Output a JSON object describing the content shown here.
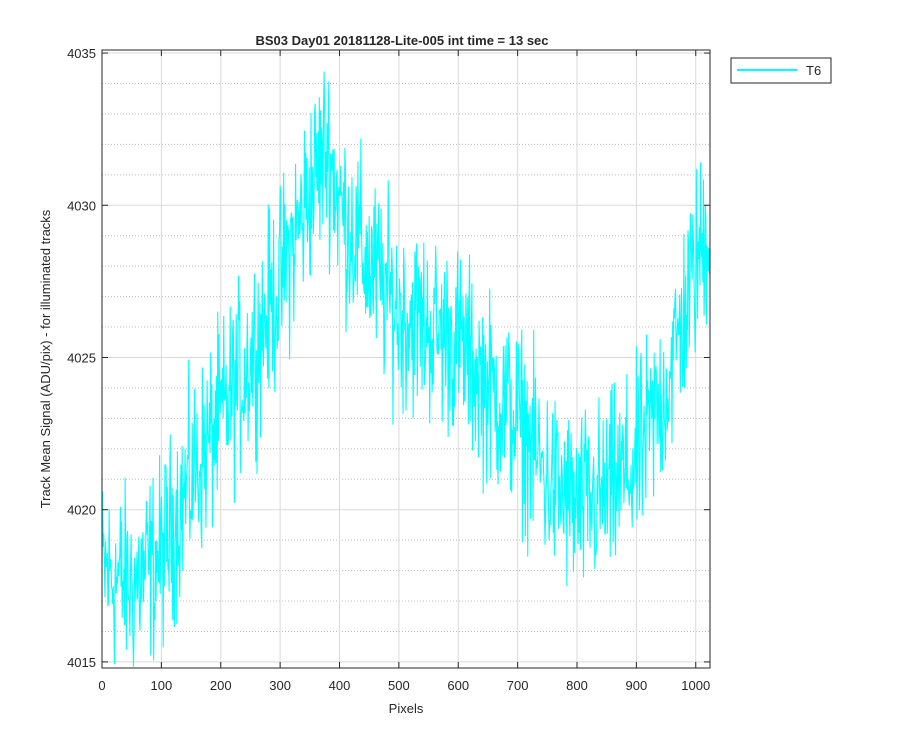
{
  "chart_data": {
    "type": "line",
    "title": "BS03 Day01 20181128-Lite-005 int time = 13 sec",
    "xlabel": "Pixels",
    "ylabel": "Track Mean Signal (ADU/pix) - for illuminated tracks",
    "xlim": [
      0,
      1024
    ],
    "ylim": [
      4014.8,
      4035.1
    ],
    "x_ticks": [
      0,
      100,
      200,
      300,
      400,
      500,
      600,
      700,
      800,
      900,
      1000
    ],
    "x_tick_labels": [
      "0",
      "100",
      "200",
      "300",
      "400",
      "500",
      "600",
      "700",
      "800",
      "900",
      "1000"
    ],
    "y_ticks": [
      4015,
      4020,
      4025,
      4030,
      4035
    ],
    "y_tick_labels": [
      "4015",
      "4020",
      "4025",
      "4030",
      "4035"
    ],
    "grid": true,
    "minor_grid": true,
    "legend": "top-right",
    "series": [
      {
        "name": "T6",
        "color": "#00ffff",
        "noise_amplitude": 2.2,
        "trend_x": [
          0,
          50,
          100,
          150,
          200,
          250,
          300,
          350,
          380,
          400,
          450,
          500,
          550,
          600,
          650,
          700,
          750,
          800,
          850,
          900,
          950,
          1000,
          1024
        ],
        "trend_y": [
          4018,
          4017.5,
          4018.5,
          4021,
          4023,
          4025,
          4027.5,
          4030.5,
          4032,
          4030,
          4028,
          4026.5,
          4026,
          4025.5,
          4024,
          4023,
          4021,
          4020,
          4020.5,
          4021.5,
          4024,
          4028,
          4029.5
        ]
      }
    ]
  }
}
